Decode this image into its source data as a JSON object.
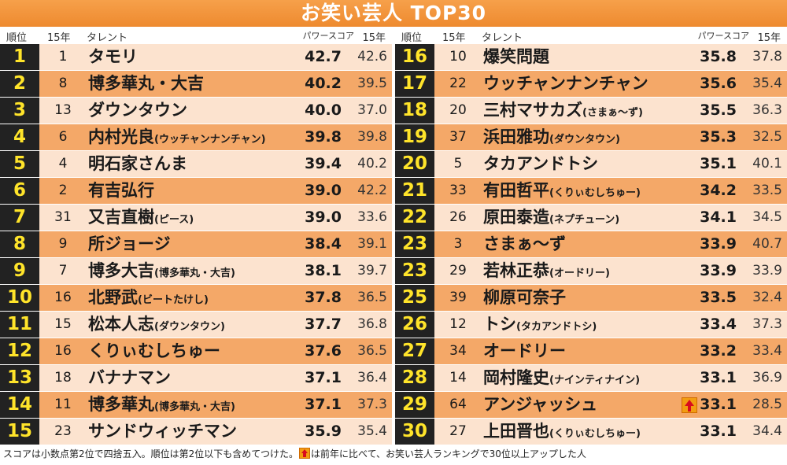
{
  "title": "お笑い芸人 TOP30",
  "headers": {
    "rank": "順位",
    "prev_rank": "15年",
    "talent": "タレント",
    "power_score": "パワースコア",
    "prev_score": "15年"
  },
  "left": [
    {
      "rank": "1",
      "prev": "1",
      "name": "タモリ",
      "sub": "",
      "score": "42.7",
      "prev_score": "42.6"
    },
    {
      "rank": "2",
      "prev": "8",
      "name": "博多華丸・大吉",
      "sub": "",
      "score": "40.2",
      "prev_score": "39.5"
    },
    {
      "rank": "3",
      "prev": "13",
      "name": "ダウンタウン",
      "sub": "",
      "score": "40.0",
      "prev_score": "37.0"
    },
    {
      "rank": "4",
      "prev": "6",
      "name": "内村光良",
      "sub": "(ウッチャンナンチャン)",
      "score": "39.8",
      "prev_score": "39.8"
    },
    {
      "rank": "5",
      "prev": "4",
      "name": "明石家さんま",
      "sub": "",
      "score": "39.4",
      "prev_score": "40.2"
    },
    {
      "rank": "6",
      "prev": "2",
      "name": "有吉弘行",
      "sub": "",
      "score": "39.0",
      "prev_score": "42.2"
    },
    {
      "rank": "7",
      "prev": "31",
      "name": "又吉直樹",
      "sub": "(ピース)",
      "score": "39.0",
      "prev_score": "33.6"
    },
    {
      "rank": "8",
      "prev": "9",
      "name": "所ジョージ",
      "sub": "",
      "score": "38.4",
      "prev_score": "39.1"
    },
    {
      "rank": "9",
      "prev": "7",
      "name": "博多大吉",
      "sub": "(博多華丸・大吉)",
      "score": "38.1",
      "prev_score": "39.7"
    },
    {
      "rank": "10",
      "prev": "16",
      "name": "北野武",
      "sub": "(ビートたけし)",
      "score": "37.8",
      "prev_score": "36.5"
    },
    {
      "rank": "11",
      "prev": "15",
      "name": "松本人志",
      "sub": "(ダウンタウン)",
      "score": "37.7",
      "prev_score": "36.8"
    },
    {
      "rank": "12",
      "prev": "16",
      "name": "くりぃむしちゅー",
      "sub": "",
      "score": "37.6",
      "prev_score": "36.5"
    },
    {
      "rank": "13",
      "prev": "18",
      "name": "バナナマン",
      "sub": "",
      "score": "37.1",
      "prev_score": "36.4"
    },
    {
      "rank": "14",
      "prev": "11",
      "name": "博多華丸",
      "sub": "(博多華丸・大吉)",
      "score": "37.1",
      "prev_score": "37.3"
    },
    {
      "rank": "15",
      "prev": "23",
      "name": "サンドウィッチマン",
      "sub": "",
      "score": "35.9",
      "prev_score": "35.4"
    }
  ],
  "right": [
    {
      "rank": "16",
      "prev": "10",
      "name": "爆笑問題",
      "sub": "",
      "score": "35.8",
      "prev_score": "37.8"
    },
    {
      "rank": "17",
      "prev": "22",
      "name": "ウッチャンナンチャン",
      "sub": "",
      "score": "35.6",
      "prev_score": "35.4"
    },
    {
      "rank": "18",
      "prev": "20",
      "name": "三村マサカズ",
      "sub": "(さまぁ〜ず)",
      "score": "35.5",
      "prev_score": "36.3"
    },
    {
      "rank": "19",
      "prev": "37",
      "name": "浜田雅功",
      "sub": "(ダウンタウン)",
      "score": "35.3",
      "prev_score": "32.5"
    },
    {
      "rank": "20",
      "prev": "5",
      "name": "タカアンドトシ",
      "sub": "",
      "score": "35.1",
      "prev_score": "40.1"
    },
    {
      "rank": "21",
      "prev": "33",
      "name": "有田哲平",
      "sub": "(くりぃむしちゅー)",
      "score": "34.2",
      "prev_score": "33.5"
    },
    {
      "rank": "22",
      "prev": "26",
      "name": "原田泰造",
      "sub": "(ネプチューン)",
      "score": "34.1",
      "prev_score": "34.5"
    },
    {
      "rank": "23",
      "prev": "3",
      "name": "さまぁ〜ず",
      "sub": "",
      "score": "33.9",
      "prev_score": "40.7"
    },
    {
      "rank": "23",
      "prev": "29",
      "name": "若林正恭",
      "sub": "(オードリー)",
      "score": "33.9",
      "prev_score": "33.9"
    },
    {
      "rank": "25",
      "prev": "39",
      "name": "柳原可奈子",
      "sub": "",
      "score": "33.5",
      "prev_score": "32.4"
    },
    {
      "rank": "26",
      "prev": "12",
      "name": "トシ",
      "sub": "(タカアンドトシ)",
      "score": "33.4",
      "prev_score": "37.3"
    },
    {
      "rank": "27",
      "prev": "34",
      "name": "オードリー",
      "sub": "",
      "score": "33.2",
      "prev_score": "33.4"
    },
    {
      "rank": "28",
      "prev": "14",
      "name": "岡村隆史",
      "sub": "(ナインティナイン)",
      "score": "33.1",
      "prev_score": "36.9"
    },
    {
      "rank": "29",
      "prev": "64",
      "name": "アンジャッシュ",
      "sub": "",
      "score": "33.1",
      "prev_score": "28.5",
      "up": true
    },
    {
      "rank": "30",
      "prev": "27",
      "name": "上田晋也",
      "sub": "(くりぃむしちゅー)",
      "score": "33.1",
      "prev_score": "34.4"
    }
  ],
  "footnote": {
    "before": "スコアは小数点第2位で四捨五入。順位は第2位以下も含めてつけた。",
    "after": "は前年に比べて、お笑い芸人ランキングで30位以上アップした人"
  },
  "colors": {
    "banner": "#ee8a2f",
    "row_light": "#fce3cf",
    "row_dark": "#f4a868",
    "rank_bg": "#222222",
    "rank_text": "#ffe42a",
    "up_icon": "#f29d12"
  },
  "icons": {
    "up": "up-arrow-icon"
  }
}
